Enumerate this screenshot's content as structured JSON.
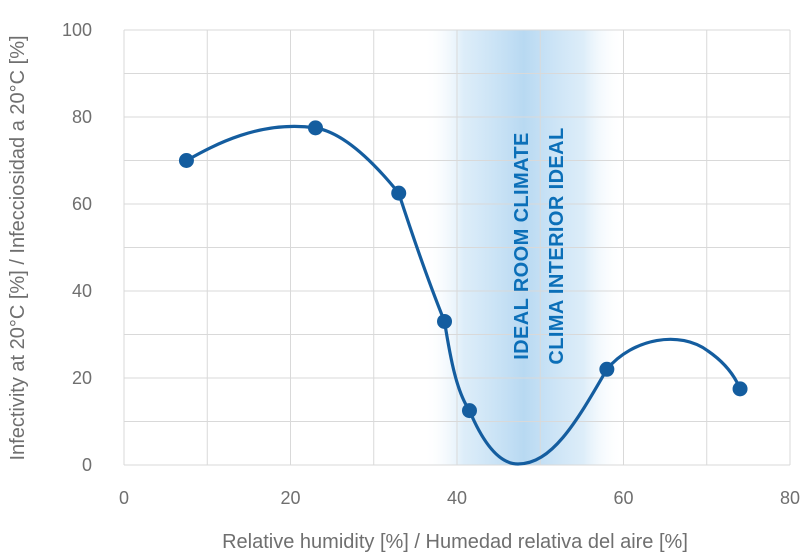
{
  "chart_data": {
    "type": "line",
    "xlabel": "Relative humidity [%] / Humedad relativa del aire [%]",
    "ylabel": "Infectivity at 20°C [%] / Infecciosidad a 20°C [%]",
    "xlim": [
      0,
      80
    ],
    "ylim": [
      0,
      100
    ],
    "x_ticks": [
      "0",
      "20",
      "40",
      "60",
      "80"
    ],
    "y_ticks": [
      "0",
      "20",
      "40",
      "60",
      "80",
      "100"
    ],
    "grid": true,
    "highlight_band": {
      "x_range": [
        36,
        60
      ],
      "labels": [
        "IDEAL ROOM CLIMATE",
        "CLIMA INTERIOR IDEAL"
      ],
      "color": "#c6e2f6"
    },
    "series": [
      {
        "color": "#145d9f",
        "points": [
          {
            "x": 7.5,
            "y": 70
          },
          {
            "x": 23.0,
            "y": 77.5
          },
          {
            "x": 33.0,
            "y": 62.5
          },
          {
            "x": 38.5,
            "y": 33
          },
          {
            "x": 41.5,
            "y": 12.5
          },
          {
            "x": 58.0,
            "y": 22
          },
          {
            "x": 74.0,
            "y": 17.5
          }
        ]
      }
    ]
  }
}
